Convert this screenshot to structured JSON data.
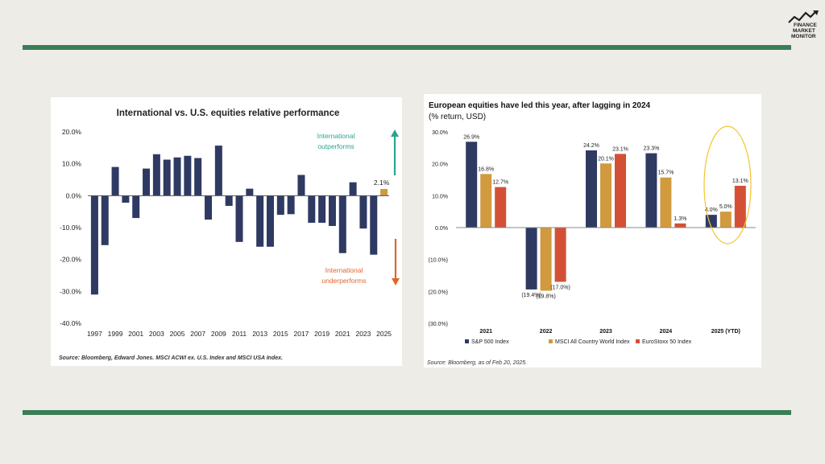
{
  "logo": {
    "line1": "FINANCE",
    "line2": "MARKET",
    "line3": "MONITOR"
  },
  "colors": {
    "rule": "#3b7d57",
    "navy": "#2f3a63",
    "gold": "#d19a3f",
    "red": "#d35037",
    "teal": "#2aa58c",
    "orange": "#e0652d",
    "highlight": "#f4c430"
  },
  "chart_data": [
    {
      "type": "bar",
      "title": "International vs. U.S. equities relative performance",
      "source": "Source: Bloomberg, Edward Jones. MSCI ACWI ex. U.S. Index and MSCI USA Index.",
      "x": [
        1997,
        1998,
        1999,
        2000,
        2001,
        2002,
        2003,
        2004,
        2005,
        2006,
        2007,
        2008,
        2009,
        2010,
        2011,
        2012,
        2013,
        2014,
        2015,
        2016,
        2017,
        2018,
        2019,
        2020,
        2021,
        2022,
        2023,
        2024,
        2025
      ],
      "xtick_labels": [
        "1997",
        "1999",
        "2001",
        "2003",
        "2005",
        "2007",
        "2009",
        "2011",
        "2013",
        "2015",
        "2017",
        "2019",
        "2021",
        "2023",
        "2025"
      ],
      "values": [
        -31.0,
        -15.5,
        9.0,
        -2.2,
        -7.0,
        8.5,
        13.0,
        11.3,
        12.0,
        12.5,
        11.8,
        -7.5,
        15.7,
        -3.2,
        -14.5,
        2.2,
        -16.0,
        -16.0,
        -6.0,
        -5.8,
        6.5,
        -8.5,
        -8.5,
        -9.5,
        -18.0,
        4.2,
        -10.3,
        -18.5,
        2.1
      ],
      "ylim": [
        -40,
        20
      ],
      "yticks": [
        20,
        10,
        0,
        -10,
        -20,
        -30,
        -40
      ],
      "ytick_labels": [
        "20.0%",
        "10.0%",
        "0.0%",
        "-10.0%",
        "-20.0%",
        "-30.0%",
        "-40.0%"
      ],
      "data_labels": {
        "last": "2.1%"
      },
      "annotations": {
        "outperform_line1": "International",
        "outperform_line2": "outperforms",
        "underperform_line1": "International",
        "underperform_line2": "underperforms"
      }
    },
    {
      "type": "bar",
      "title": "European equities have led this year, after lagging in 2024",
      "subtitle": "(% return, USD)",
      "source": "Source: Bloomberg, as of Feb 20, 2025.",
      "categories": [
        "2021",
        "2022",
        "2023",
        "2024",
        "2025 (YTD)"
      ],
      "series": [
        {
          "name": "S&P 500 Index",
          "values": [
            26.9,
            -19.4,
            24.2,
            23.3,
            4.0
          ],
          "labels": [
            "26.9%",
            "(19.4%)",
            "24.2%",
            "23.3%",
            "4.0%"
          ]
        },
        {
          "name": "MSCI All Country World Index",
          "values": [
            16.8,
            -19.8,
            20.1,
            15.7,
            5.0
          ],
          "labels": [
            "16.8%",
            "(19.8%)",
            "20.1%",
            "15.7%",
            "5.0%"
          ]
        },
        {
          "name": "EuroStoxx 50 Index",
          "values": [
            12.7,
            -17.0,
            23.1,
            1.3,
            13.1
          ],
          "labels": [
            "12.7%",
            "(17.0%)",
            "23.1%",
            "1.3%",
            "13.1%"
          ]
        }
      ],
      "ylim": [
        -30,
        30
      ],
      "yticks": [
        30,
        20,
        10,
        0,
        -10,
        -20,
        -30
      ],
      "ytick_labels": [
        "30.0%",
        "20.0%",
        "10.0%",
        "0.0%",
        "(10.0%)",
        "(20.0%)",
        "(30.0%)"
      ],
      "legend": "bottom",
      "highlight_category": "2025 (YTD)"
    }
  ]
}
